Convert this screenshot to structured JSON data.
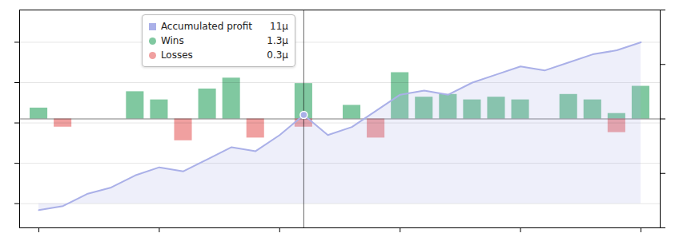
{
  "chart_data": {
    "type": "line",
    "x": [
      0,
      1,
      2,
      3,
      4,
      5,
      6,
      7,
      8,
      9,
      10,
      11,
      12,
      13,
      14,
      15,
      16,
      17,
      18,
      19,
      20,
      21,
      22,
      23,
      24,
      25
    ],
    "xlim": [
      -0.8,
      25.8
    ],
    "xticks": [
      0,
      5,
      10,
      15,
      20,
      25
    ],
    "ylim": [
      -3,
      24
    ],
    "yticks": [
      0,
      5,
      10,
      15,
      20
    ],
    "y2lim": [
      -4,
      4
    ],
    "y2ticks": [
      -4,
      -2,
      0,
      2,
      4
    ],
    "grid": true,
    "tick_labels": false,
    "series": [
      {
        "name": "Accumulated profit",
        "type": "line",
        "color": "#aab0e8",
        "values": [
          -0.8,
          -0.3,
          1.2,
          2.0,
          3.5,
          4.5,
          4.0,
          5.5,
          7.0,
          6.5,
          8.5,
          11.0,
          8.5,
          9.5,
          11.5,
          13.5,
          14.0,
          13.5,
          15.0,
          16.0,
          17.0,
          16.5,
          17.5,
          18.5,
          19.0,
          20.0
        ]
      },
      {
        "name": "Wins",
        "type": "bar",
        "axis": "y2",
        "color": "#80c8a0",
        "values": [
          0.4,
          0.0,
          0.0,
          0.0,
          1.0,
          0.7,
          0.0,
          1.1,
          1.5,
          0.0,
          0.0,
          1.3,
          0.0,
          0.5,
          0.0,
          1.7,
          0.8,
          0.9,
          0.7,
          0.8,
          0.7,
          0.0,
          0.9,
          0.7,
          0.2,
          1.2
        ]
      },
      {
        "name": "Losses",
        "type": "bar",
        "axis": "y2",
        "color": "#f0a0a0",
        "values": [
          0.0,
          -0.3,
          0.0,
          0.0,
          0.0,
          0.0,
          -0.8,
          0.0,
          0.0,
          -0.7,
          0.0,
          -0.3,
          0.0,
          0.0,
          -0.7,
          0.0,
          0.0,
          0.0,
          0.0,
          0.0,
          0.0,
          0.0,
          0.0,
          0.0,
          -0.5,
          0.0
        ]
      }
    ],
    "annotations": [
      {
        "x": 11,
        "texts": [
          "11μ",
          "1.3μ",
          "0.3μ"
        ]
      }
    ]
  }
}
